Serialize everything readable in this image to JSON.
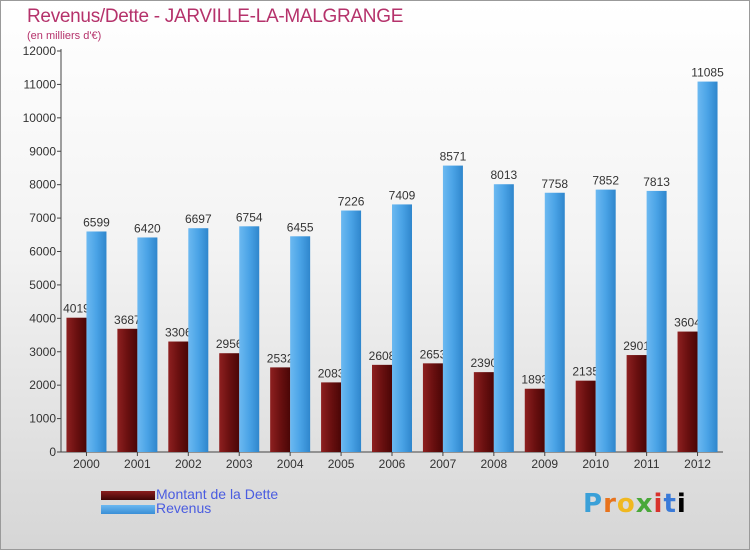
{
  "title": "Revenus/Dette - JARVILLE-LA-MALGRANGE",
  "subtitle": "(en milliers d'€)",
  "logo_text": "Proxiti",
  "chart_data": {
    "type": "bar",
    "categories": [
      "2000",
      "2001",
      "2002",
      "2003",
      "2004",
      "2005",
      "2006",
      "2007",
      "2008",
      "2009",
      "2010",
      "2011",
      "2012"
    ],
    "series": [
      {
        "name": "Montant de la Dette",
        "color": "#7a1414",
        "values": [
          4019,
          3687,
          3306,
          2956,
          2532,
          2083,
          2608,
          2653,
          2390,
          1893,
          2135,
          2901,
          3604
        ],
        "labels": [
          "4019",
          "3687",
          "3306",
          "2956",
          "2532",
          "2083",
          "2608",
          "2653",
          "2390",
          "1893",
          "2135",
          "2901",
          "3604"
        ]
      },
      {
        "name": "Revenus",
        "color": "#4aa3e6",
        "values": [
          6599,
          6420,
          6697,
          6754,
          6455,
          7226,
          7409,
          8571,
          8013,
          7758,
          7852,
          7813,
          11085
        ],
        "labels": [
          "6599",
          "6420",
          "6697",
          "6754",
          "6455",
          "7226",
          "7409",
          "8571",
          "8013",
          "7758",
          "7852",
          "7813",
          "11085"
        ]
      }
    ],
    "yticks": [
      "0",
      "1000",
      "2000",
      "3000",
      "4000",
      "5000",
      "6000",
      "7000",
      "8000",
      "9000",
      "10000",
      "11000",
      "12000"
    ],
    "ylim": [
      0,
      12000
    ],
    "grid": false,
    "legend_position": "bottom-left"
  }
}
